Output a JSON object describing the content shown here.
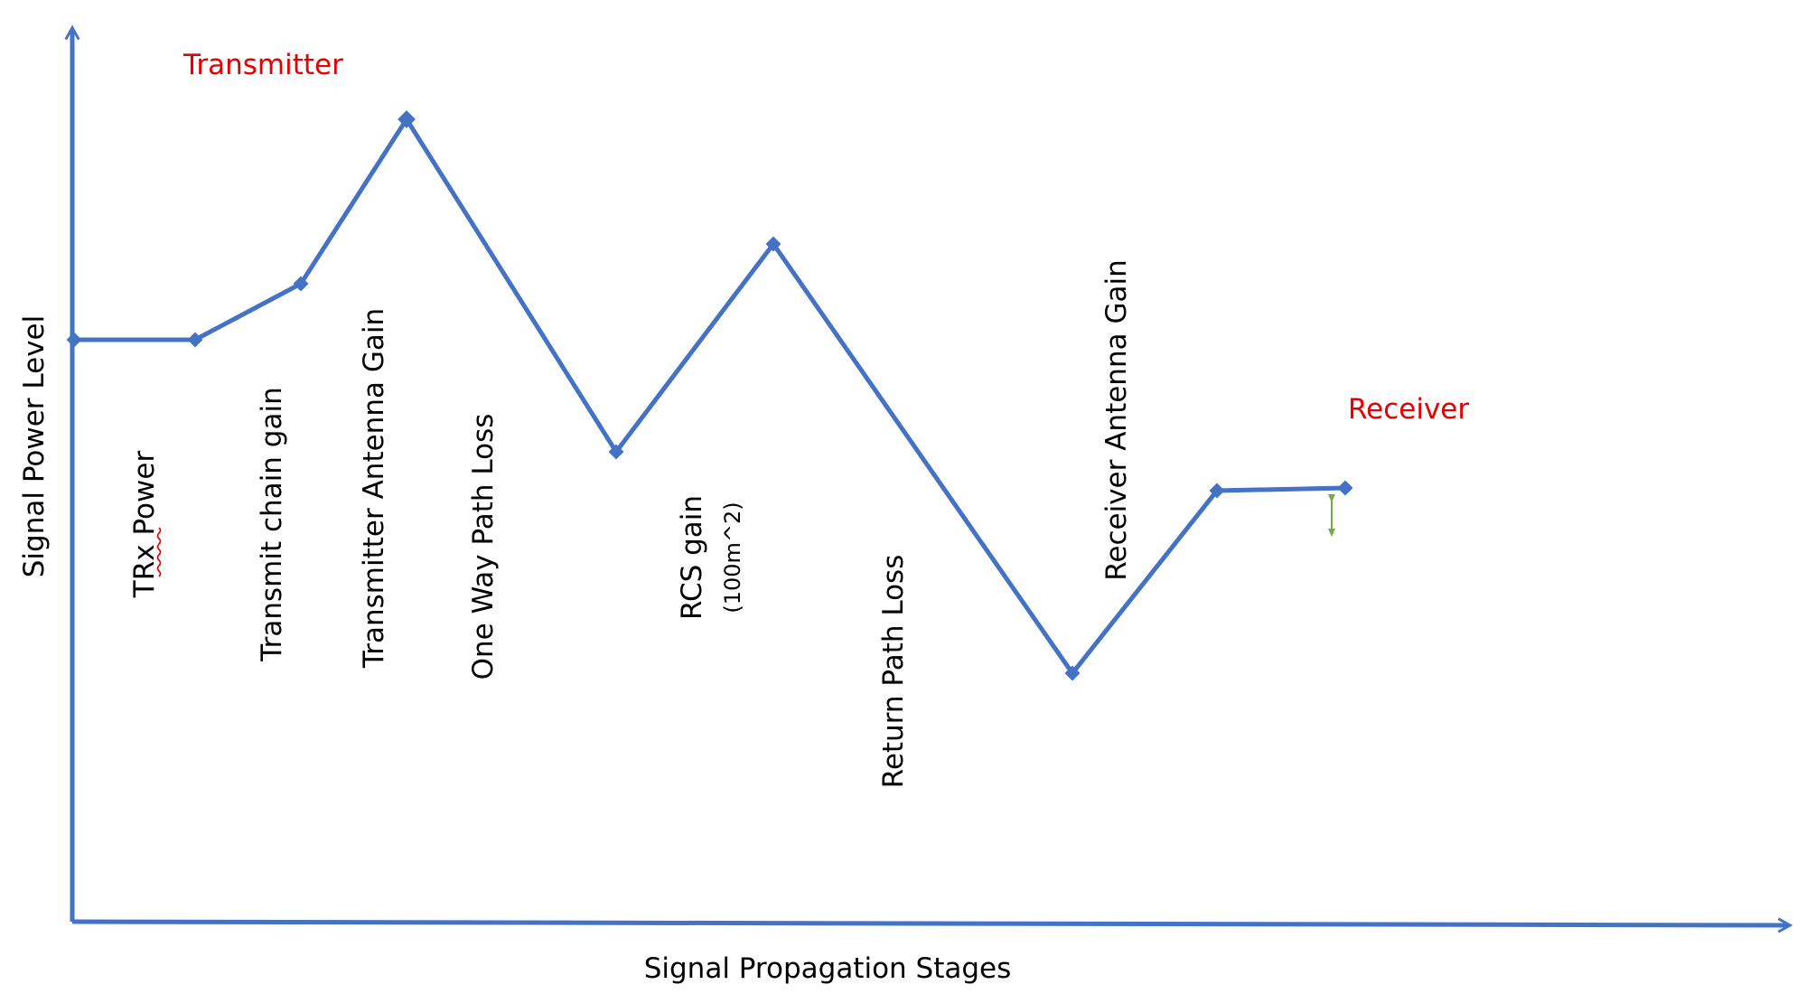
{
  "axes": {
    "x_title": "Signal Propagation Stages",
    "y_title": "Signal Power Level"
  },
  "endpoints": {
    "transmitter": "Transmitter",
    "receiver": "Receiver",
    "color": "#e60000"
  },
  "stages": [
    {
      "label": "TRx Power"
    },
    {
      "label": "Transmit chain gain"
    },
    {
      "label": "Transmitter Antenna Gain"
    },
    {
      "label": "One Way Path Loss"
    },
    {
      "label": "RCS gain",
      "sub": "(100m^2)"
    },
    {
      "label": "Return Path Loss"
    },
    {
      "label": "Receiver Antenna Gain"
    }
  ],
  "colors": {
    "line": "#4472c4",
    "axis": "#4472c4",
    "marker_arrow": "#70ad47",
    "spell_underline": "#e60000"
  }
}
